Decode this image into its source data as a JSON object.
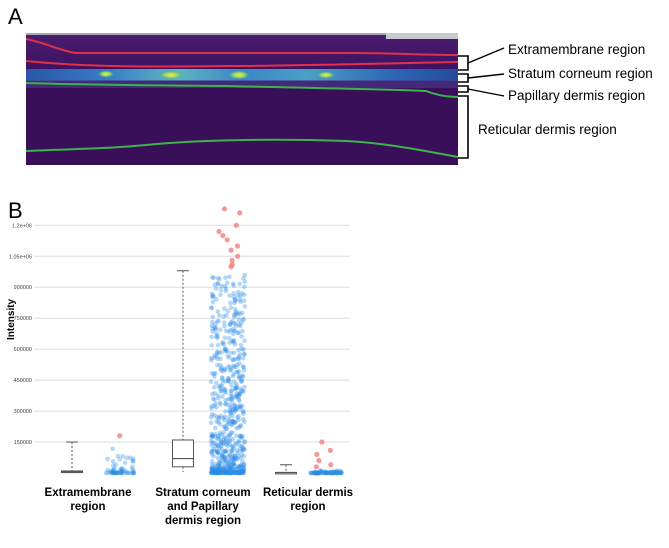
{
  "panel_a": {
    "letter": "A",
    "regions": [
      "Extramembrane region",
      "Stratum corneum region",
      "Papillary dermis region",
      "Reticular dermis region"
    ]
  },
  "panel_b": {
    "letter": "B"
  },
  "colors": {
    "heatmap_background": "#3a0f5a",
    "boundary_red": "#e0304a",
    "boundary_green": "#39b54a",
    "scatter_blue": "#2a8be8",
    "outlier_red": "#f08080",
    "box_line": "#555555"
  },
  "chart_data": {
    "type": "scatter",
    "title": "",
    "xlabel": "",
    "ylabel": "Intensity",
    "categories": [
      "Extramembrane region",
      "Stratum corneum and Papillary dermis region",
      "Reticular dermis region"
    ],
    "ylim": [
      0,
      1250000
    ],
    "yticks": [
      150000,
      300000,
      450000,
      600000,
      750000,
      900000,
      1050000,
      1200000
    ],
    "ytick_labels": [
      "150000",
      "300000",
      "450000",
      "600000",
      "750000",
      "900000",
      "1.05e+06",
      "1.2e+06"
    ],
    "grid": true,
    "boxes": [
      {
        "category": "Extramembrane region",
        "whisker_low": 0,
        "q1": 2000,
        "median": 6000,
        "q3": 10000,
        "whisker_high": 150000
      },
      {
        "category": "Stratum corneum and Papillary dermis region",
        "whisker_low": 5000,
        "q1": 30000,
        "median": 70000,
        "q3": 160000,
        "whisker_high": 980000
      },
      {
        "category": "Reticular dermis region",
        "whisker_low": 0,
        "q1": 1000,
        "median": 2000,
        "q3": 3000,
        "whisker_high": 40000
      }
    ],
    "outliers": [
      {
        "category": "Extramembrane region",
        "y": [
          180000
        ]
      },
      {
        "category": "Stratum corneum and Papillary dermis region",
        "y": [
          1280000,
          1260000,
          1200000,
          1170000,
          1150000,
          1130000,
          1100000,
          1080000,
          1050000,
          1030000,
          1010000,
          1000000
        ]
      },
      {
        "category": "Reticular dermis region",
        "y": [
          150000,
          110000,
          90000,
          60000,
          40000,
          30000
        ]
      }
    ]
  }
}
